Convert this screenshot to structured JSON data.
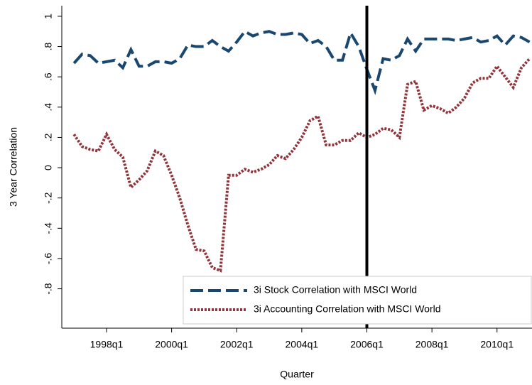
{
  "chart_data": {
    "type": "line",
    "y_label": "3 Year Correlation",
    "x_label": "Quarter",
    "x": [
      148,
      149,
      150,
      151,
      152,
      153,
      154,
      155,
      156,
      157,
      158,
      159,
      160,
      161,
      162,
      163,
      164,
      165,
      166,
      167,
      168,
      169,
      170,
      171,
      172,
      173,
      174,
      175,
      176,
      177,
      178,
      179,
      180,
      181,
      182,
      183,
      184,
      185,
      186,
      187,
      188,
      189,
      190,
      191,
      192,
      193,
      194,
      195,
      196,
      197,
      198,
      199,
      200,
      201,
      202,
      203,
      204
    ],
    "series": [
      {
        "name": "3i Stock Correlation with MSCI World",
        "color": "#1a476f",
        "dash": "18,7",
        "values": [
          0.69,
          0.75,
          0.74,
          0.69,
          0.7,
          0.71,
          0.66,
          0.78,
          0.67,
          0.67,
          0.7,
          0.7,
          0.69,
          0.72,
          0.81,
          0.8,
          0.8,
          0.84,
          0.8,
          0.77,
          0.83,
          0.9,
          0.87,
          0.89,
          0.9,
          0.88,
          0.88,
          0.89,
          0.88,
          0.82,
          0.84,
          0.8,
          0.71,
          0.71,
          0.89,
          0.8,
          0.65,
          0.51,
          0.72,
          0.71,
          0.74,
          0.85,
          0.77,
          0.85,
          0.85,
          0.85,
          0.85,
          0.84,
          0.85,
          0.86,
          0.83,
          0.84,
          0.87,
          0.81,
          0.87,
          0.86,
          0.83
        ]
      },
      {
        "name": "3i Accounting Correlation with MSCI World",
        "color": "#90353b",
        "dash": "3,2",
        "values": [
          0.22,
          0.14,
          0.12,
          0.11,
          0.22,
          0.12,
          0.07,
          -0.13,
          -0.08,
          -0.02,
          0.11,
          0.08,
          -0.05,
          -0.2,
          -0.38,
          -0.54,
          -0.55,
          -0.66,
          -0.68,
          -0.05,
          -0.05,
          -0.01,
          -0.03,
          -0.01,
          0.02,
          0.08,
          0.06,
          0.12,
          0.2,
          0.31,
          0.34,
          0.15,
          0.15,
          0.18,
          0.18,
          0.23,
          0.2,
          0.22,
          0.26,
          0.25,
          0.2,
          0.55,
          0.57,
          0.38,
          0.41,
          0.39,
          0.36,
          0.4,
          0.46,
          0.56,
          0.59,
          0.59,
          0.67,
          0.6,
          0.53,
          0.66,
          0.72
        ]
      }
    ],
    "vline": 184,
    "xlim": [
      146.5,
      204.3
    ],
    "xticks": [
      {
        "value": 152,
        "label": "1998q1"
      },
      {
        "value": 160,
        "label": "2000q1"
      },
      {
        "value": 168,
        "label": "2002q1"
      },
      {
        "value": 176,
        "label": "2004q1"
      },
      {
        "value": 184,
        "label": "2006q1"
      },
      {
        "value": 192,
        "label": "2008q1"
      },
      {
        "value": 200,
        "label": "2010q1"
      }
    ],
    "ylim": [
      -1.06,
      1.07
    ],
    "yticks": [
      1,
      {
        "value": 0.8,
        "label": ".8"
      },
      {
        "value": 0.6,
        "label": ".6"
      },
      {
        "value": 0.4,
        "label": ".4"
      },
      {
        "value": 0.2,
        "label": ".2"
      },
      0,
      {
        "value": -0.2,
        "label": "-.2"
      },
      {
        "value": -0.4,
        "label": "-.4"
      },
      {
        "value": -0.6,
        "label": "-.6"
      },
      {
        "value": -0.8,
        "label": "-.8"
      }
    ],
    "legend": "lower right"
  }
}
